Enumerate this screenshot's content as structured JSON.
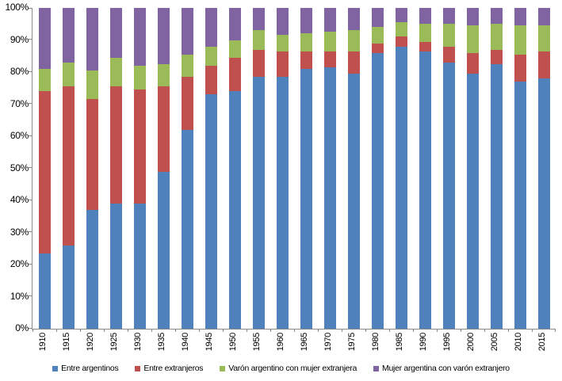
{
  "figure": {
    "background": "#ffffff",
    "axis_color": "#8a8a8a",
    "text_color": "#000000"
  },
  "chart_data": {
    "type": "bar",
    "subtype": "stacked-100-percent",
    "title": "",
    "xlabel": "",
    "ylabel": "",
    "ylim": [
      0,
      100
    ],
    "grid": false,
    "legend_position": "bottom",
    "y_ticks": [
      "0%",
      "10%",
      "20%",
      "30%",
      "40%",
      "50%",
      "60%",
      "70%",
      "80%",
      "90%",
      "100%"
    ],
    "categories": [
      "1910",
      "1915",
      "1920",
      "1925",
      "1930",
      "1935",
      "1940",
      "1945",
      "1950",
      "1955",
      "1960",
      "1965",
      "1970",
      "1975",
      "1980",
      "1985",
      "1990",
      "1995",
      "2000",
      "2005",
      "2010",
      "2015"
    ],
    "series": [
      {
        "name": "Entre argentinos",
        "color": "#4F81BD",
        "values": [
          23.5,
          26,
          37,
          39,
          39,
          49,
          62,
          73,
          74,
          78.5,
          78.5,
          81,
          81.5,
          79.5,
          86,
          88,
          86.5,
          83,
          79.5,
          82.5,
          77,
          78
        ]
      },
      {
        "name": "Entre extranjeros",
        "color": "#C0504D",
        "values": [
          50.5,
          49.5,
          34.5,
          36.5,
          35.5,
          26.5,
          16.5,
          9,
          10.5,
          8.5,
          8,
          5.5,
          5,
          7,
          3,
          3,
          3,
          5,
          6.5,
          4.5,
          8.5,
          8.5
        ]
      },
      {
        "name": "Varón argentino con mujer extranjera",
        "color": "#9BBB59",
        "values": [
          7,
          7.5,
          9,
          9,
          7.5,
          7,
          7,
          6,
          5.5,
          6,
          5,
          5.5,
          6,
          6.5,
          5,
          4.5,
          5.5,
          7,
          8.5,
          8,
          9,
          8
        ]
      },
      {
        "name": "Mujer argentina con varón extranjero",
        "color": "#8064A2",
        "values": [
          19,
          17,
          19.5,
          15.5,
          18,
          17.5,
          14.5,
          12,
          10,
          7,
          8.5,
          8,
          7.5,
          7,
          6,
          4.5,
          5,
          5,
          5.5,
          5,
          5.5,
          5.5
        ]
      }
    ]
  }
}
